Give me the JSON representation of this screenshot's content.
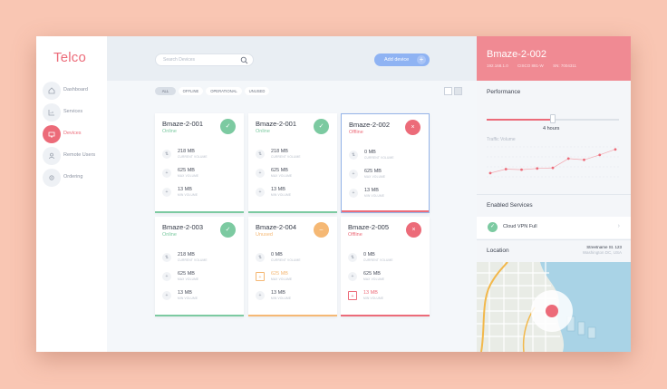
{
  "brand": "Telco",
  "nav": [
    {
      "label": "Dashboard",
      "icon": "home-icon"
    },
    {
      "label": "Services",
      "icon": "chart-icon"
    },
    {
      "label": "Devices",
      "icon": "devices-icon",
      "active": true
    },
    {
      "label": "Remote Users",
      "icon": "user-icon"
    },
    {
      "label": "Ordering",
      "icon": "gear-icon"
    }
  ],
  "search": {
    "placeholder": "Search Devices"
  },
  "add_button": {
    "label": "Add device",
    "plus": "+"
  },
  "filters": [
    "ALL",
    "OFFLINE",
    "OPERATIONAL",
    "UNUSED"
  ],
  "active_filter": "ALL",
  "stat_labels": {
    "current": "CURRENT VOLUME",
    "max": "MAX VOLUME",
    "min": "MIN VOLUME"
  },
  "devices": [
    {
      "name": "Bmaze-2-001",
      "status": "Online",
      "current": "218 MB",
      "max": "625 MB",
      "min": "13 MB"
    },
    {
      "name": "Bmaze-2-001",
      "status": "Online",
      "current": "218 MB",
      "max": "625 MB",
      "min": "13 MB"
    },
    {
      "name": "Bmaze-2-002",
      "status": "Offline",
      "current": "0 MB",
      "max": "625 MB",
      "min": "13 MB"
    },
    {
      "name": "Bmaze-2-003",
      "status": "Online",
      "current": "218 MB",
      "max": "625 MB",
      "min": "13 MB"
    },
    {
      "name": "Bmaze-2-004",
      "status": "Unused",
      "current": "0 MB",
      "max": "625 MB",
      "min": "13 MB"
    },
    {
      "name": "Bmaze-2-005",
      "status": "Offline",
      "current": "0 MB",
      "max": "625 MB",
      "min": "13 MB"
    }
  ],
  "colors": {
    "online": "#7ccaa1",
    "offline": "#ec6b79",
    "unused": "#f5b874",
    "accent": "#ec6b79",
    "primary": "#8fb3f3"
  },
  "detail": {
    "title": "Bmaze-2-002",
    "ip": "192.168.1.0",
    "model": "CISCO 881-W",
    "sn": "SN: 7004311",
    "performance_title": "Performance",
    "slider_value_label": "4 hours",
    "slider_fraction": 0.5,
    "traffic_label": "Traffic Volume",
    "traffic_points": [
      0.15,
      0.28,
      0.26,
      0.3,
      0.32,
      0.62,
      0.58,
      0.74,
      0.92
    ],
    "enabled_services_title": "Enabled Services",
    "service": "Cloud VPN Full",
    "location_title": "Location",
    "address_line1": "Streetname St. 123",
    "address_line2": "Washington DC, USA"
  }
}
